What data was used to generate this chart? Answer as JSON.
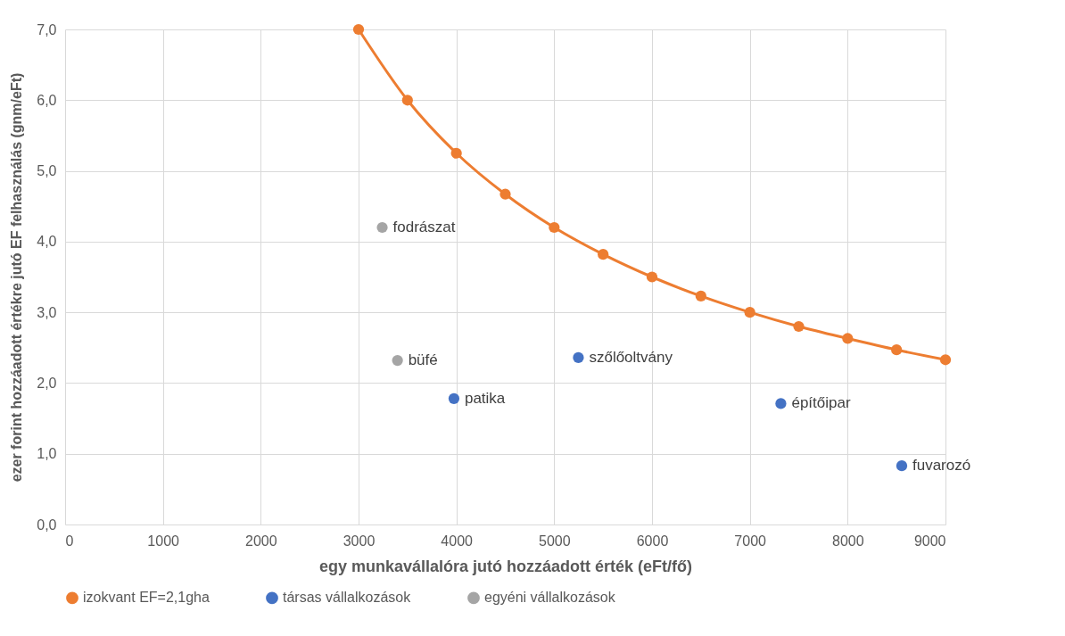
{
  "chart_data": {
    "type": "scatter",
    "xlabel": "egy munkavállalóra jutó hozzáadott érték (eFt/fő)",
    "ylabel": "ezer forint hozzáadott értékre jutó EF felhasználás (gnm/eFt)",
    "xlim": [
      0,
      9000
    ],
    "xticks": [
      0,
      1000,
      2000,
      3000,
      4000,
      5000,
      6000,
      7000,
      8000,
      9000
    ],
    "ylim": [
      0,
      7
    ],
    "yticks": [
      {
        "value": 0,
        "label": "0,0"
      },
      {
        "value": 1,
        "label": "1,0"
      },
      {
        "value": 2,
        "label": "2,0"
      },
      {
        "value": 3,
        "label": "3,0"
      },
      {
        "value": 4,
        "label": "4,0"
      },
      {
        "value": 5,
        "label": "5,0"
      },
      {
        "value": 6,
        "label": "6,0"
      },
      {
        "value": 7,
        "label": "7,0"
      }
    ],
    "grid": true,
    "legend": "bottom",
    "marker": "circle",
    "series": [
      {
        "name": "izokvant EF=2,1gha",
        "type": "line",
        "color": "#ed7d31",
        "x": [
          3000,
          3500,
          4000,
          4500,
          5000,
          5500,
          6000,
          6500,
          7000,
          7500,
          8000,
          8500,
          9000
        ],
        "values": [
          7.0,
          6.0,
          5.25,
          4.67,
          4.2,
          3.82,
          3.5,
          3.23,
          3.0,
          2.8,
          2.63,
          2.47,
          2.33
        ]
      },
      {
        "name": "társas vállalkozások",
        "color": "#4472c4",
        "x": [
          3975,
          5247,
          7317,
          8553
        ],
        "values": [
          1.78,
          2.36,
          1.71,
          0.83
        ]
      },
      {
        "name": "egyéni vállalkozások",
        "color": "#a5a5a5",
        "x": [
          3242,
          3398
        ],
        "values": [
          4.2,
          2.32
        ]
      }
    ],
    "annotations": [
      {
        "text": "patika",
        "x": 3975,
        "y": 1.78
      },
      {
        "text": "szőlőoltvány",
        "x": 5247,
        "y": 2.36
      },
      {
        "text": "építőipar",
        "x": 7317,
        "y": 1.71
      },
      {
        "text": "fuvarozó",
        "x": 8553,
        "y": 0.83
      },
      {
        "text": "fodrászat",
        "x": 3242,
        "y": 4.2
      },
      {
        "text": "büfé",
        "x": 3398,
        "y": 2.32
      }
    ]
  }
}
